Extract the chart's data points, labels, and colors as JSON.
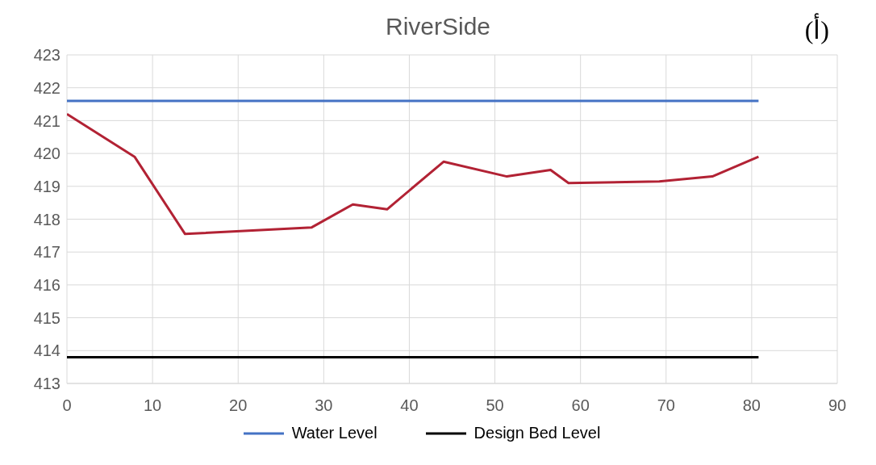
{
  "chart_data": {
    "type": "line",
    "title": "RiverSide",
    "annotations": [
      "(أ)"
    ],
    "xlim": [
      0,
      90
    ],
    "xticks": [
      0,
      10,
      20,
      30,
      40,
      50,
      60,
      70,
      80,
      90
    ],
    "ylim": [
      413,
      423
    ],
    "yticks": [
      413,
      414,
      415,
      416,
      417,
      418,
      419,
      420,
      421,
      422,
      423
    ],
    "grid": true,
    "legend": "bottom",
    "marker": "none",
    "line_style": "solid",
    "series": [
      {
        "color": "#b22234",
        "x": [
          0,
          7.9,
          13.8,
          28.6,
          33.4,
          37.4,
          44.0,
          51.4,
          56.5,
          58.6,
          69.2,
          75.4,
          80.8
        ],
        "values": [
          421.2,
          419.9,
          417.55,
          417.75,
          418.45,
          418.3,
          419.75,
          419.3,
          419.5,
          419.1,
          419.15,
          419.3,
          419.9
        ]
      },
      {
        "name": "Water Level",
        "color": "#4472c4",
        "x": [
          0,
          80.8
        ],
        "values": [
          421.6,
          421.6
        ]
      },
      {
        "name": "Design Bed Level",
        "color": "#000000",
        "x": [
          0,
          80.8
        ],
        "values": [
          413.8,
          413.8
        ]
      }
    ]
  }
}
